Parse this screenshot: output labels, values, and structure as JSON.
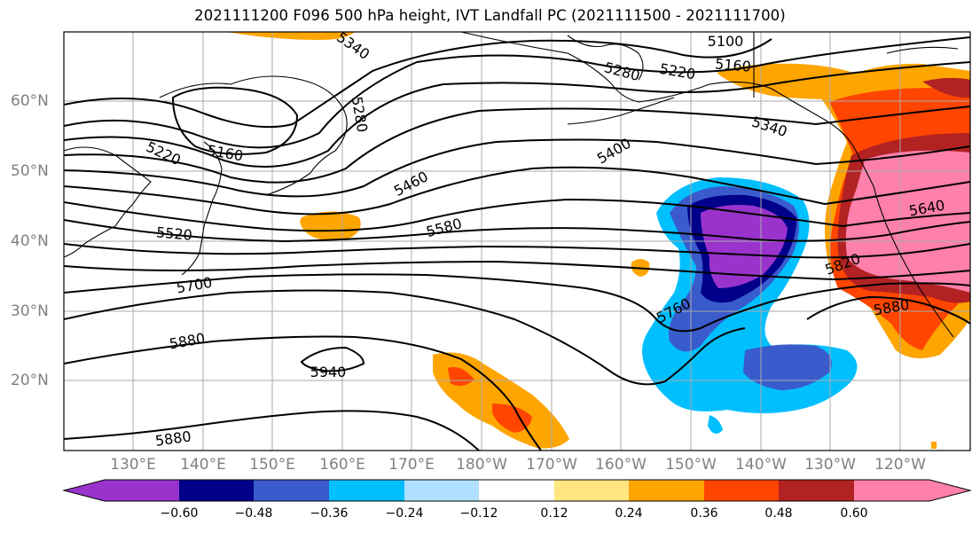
{
  "title": "2021111200 F096 500 hPa height, IVT Landfall PC (2021111500 - 2021111700)",
  "latitude_labels": [
    "60°N",
    "50°N",
    "40°N",
    "30°N",
    "20°N"
  ],
  "longitude_labels": [
    "130°E",
    "140°E",
    "150°E",
    "160°E",
    "170°E",
    "180°W",
    "170°W",
    "160°W",
    "150°W",
    "140°W",
    "130°W",
    "120°W"
  ],
  "contour_labels": [
    "5100",
    "5160",
    "5220",
    "5280",
    "5340",
    "5400",
    "5460",
    "5520",
    "5580",
    "5640",
    "5700",
    "5760",
    "5820",
    "5880",
    "5940",
    "5160",
    "5220",
    "5280",
    "5340",
    "5880",
    "5880"
  ],
  "colorbar": {
    "ticks": [
      "−0.60",
      "−0.48",
      "−0.36",
      "−0.24",
      "−0.12",
      "0.12",
      "0.24",
      "0.36",
      "0.48",
      "0.60"
    ],
    "colors": [
      "#9933cc",
      "#00008b",
      "#3a5bcc",
      "#00bfff",
      "#b0e0ff",
      "#ffffff",
      "#ffe680",
      "#ffa500",
      "#ff4500",
      "#b22222",
      "#ff80aa"
    ]
  },
  "colors": {
    "positive_1": "#ffe680",
    "positive_2": "#ffa500",
    "positive_3": "#ff4500",
    "positive_4": "#b22222",
    "positive_5": "#ff80aa",
    "negative_1": "#b0e0ff",
    "negative_2": "#00bfff",
    "negative_3": "#3a5bcc",
    "negative_4": "#00008b",
    "negative_5": "#9933cc"
  }
}
